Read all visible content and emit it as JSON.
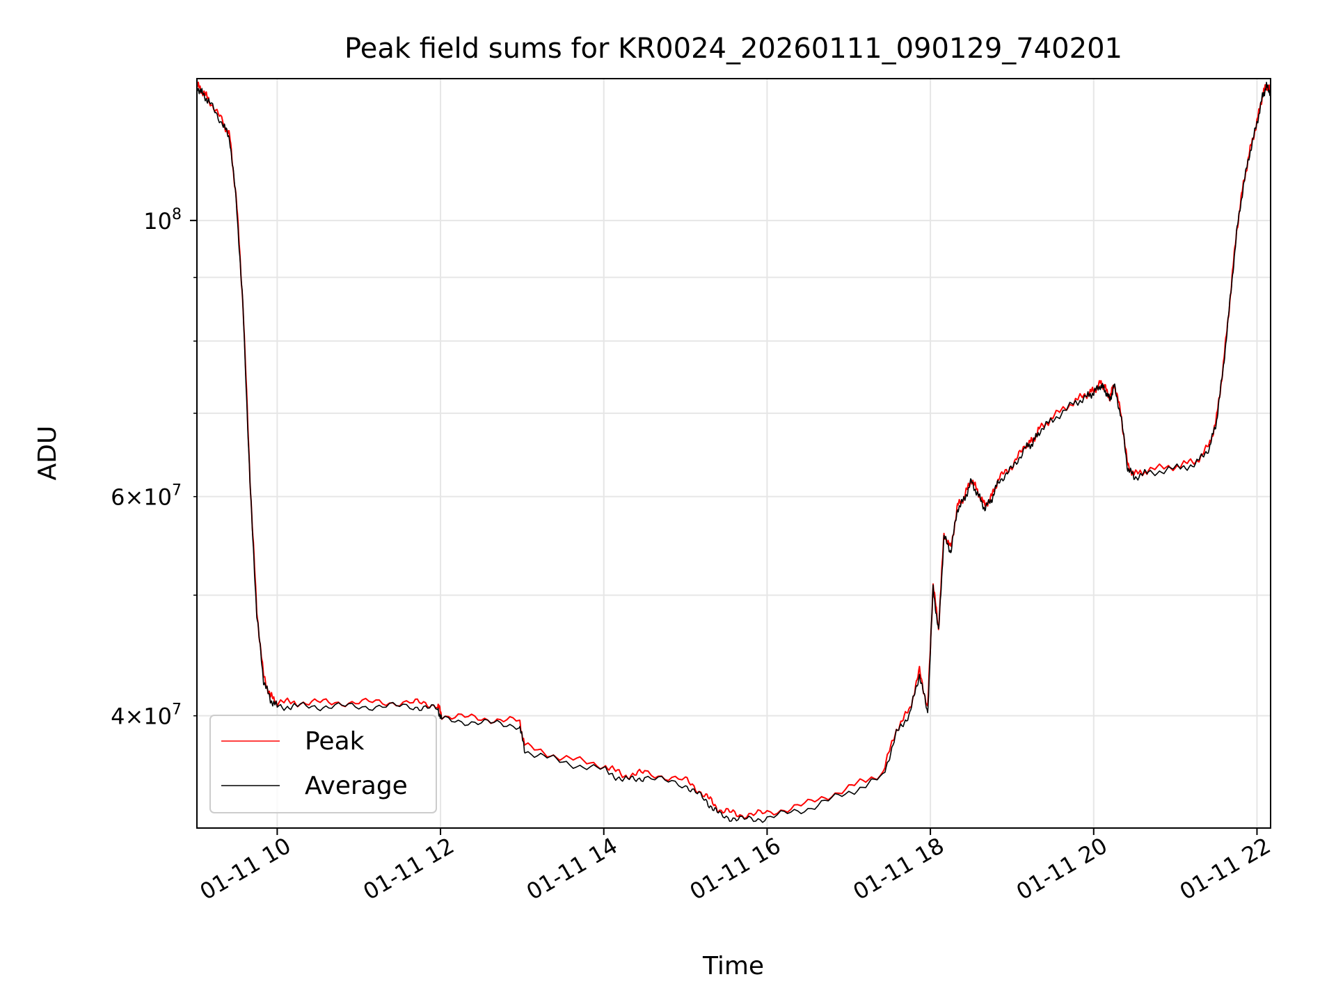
{
  "chart_data": {
    "type": "line",
    "title": "Peak field sums for KR0024_20260111_090129_740201",
    "xlabel": "Time",
    "ylabel": "ADU",
    "yscale": "log",
    "xlim": [
      "2026-01-11 09:01",
      "2026-01-11 22:10"
    ],
    "ylim": [
      32500000,
      130000000
    ],
    "x_ticks": [
      "01-11 10",
      "01-11 12",
      "01-11 14",
      "01-11 16",
      "01-11 18",
      "01-11 20",
      "01-11 22"
    ],
    "y_ticks_major": [
      {
        "value": 100000000,
        "base": "10",
        "exp": "8"
      }
    ],
    "y_ticks_labeled_minor": [
      {
        "value": 60000000,
        "mant": "6",
        "base": "10",
        "exp": "7"
      },
      {
        "value": 40000000,
        "mant": "4",
        "base": "10",
        "exp": "7"
      }
    ],
    "y_ticks_minor": [
      40000000,
      50000000,
      60000000,
      70000000,
      80000000,
      90000000
    ],
    "grid": true,
    "legend_position": "lower-left",
    "series": [
      {
        "name": "Peak",
        "color": "#ff0000",
        "x": [
          "2026-01-11 09:01",
          "2026-01-11 09:05",
          "2026-01-11 09:10",
          "2026-01-11 09:20",
          "2026-01-11 09:25",
          "2026-01-11 09:30",
          "2026-01-11 09:35",
          "2026-01-11 09:40",
          "2026-01-11 09:45",
          "2026-01-11 09:50",
          "2026-01-11 09:55",
          "2026-01-11 10:00",
          "2026-01-11 10:15",
          "2026-01-11 10:40",
          "2026-01-11 11:10",
          "2026-01-11 11:40",
          "2026-01-11 11:58",
          "2026-01-11 12:01",
          "2026-01-11 12:30",
          "2026-01-11 12:58",
          "2026-01-11 13:02",
          "2026-01-11 13:30",
          "2026-01-11 14:00",
          "2026-01-11 14:15",
          "2026-01-11 14:30",
          "2026-01-11 15:00",
          "2026-01-11 15:15",
          "2026-01-11 15:25",
          "2026-01-11 15:40",
          "2026-01-11 16:00",
          "2026-01-11 16:30",
          "2026-01-11 17:00",
          "2026-01-11 17:25",
          "2026-01-11 17:35",
          "2026-01-11 17:45",
          "2026-01-11 17:52",
          "2026-01-11 17:58",
          "2026-01-11 18:02",
          "2026-01-11 18:06",
          "2026-01-11 18:10",
          "2026-01-11 18:15",
          "2026-01-11 18:20",
          "2026-01-11 18:25",
          "2026-01-11 18:30",
          "2026-01-11 18:35",
          "2026-01-11 18:40",
          "2026-01-11 18:45",
          "2026-01-11 18:50",
          "2026-01-11 19:00",
          "2026-01-11 19:10",
          "2026-01-11 19:15",
          "2026-01-11 19:20",
          "2026-01-11 19:30",
          "2026-01-11 19:45",
          "2026-01-11 19:55",
          "2026-01-11 20:00",
          "2026-01-11 20:05",
          "2026-01-11 20:08",
          "2026-01-11 20:12",
          "2026-01-11 20:15",
          "2026-01-11 20:20",
          "2026-01-11 20:25",
          "2026-01-11 20:30",
          "2026-01-11 20:40",
          "2026-01-11 21:00",
          "2026-01-11 21:15",
          "2026-01-11 21:25",
          "2026-01-11 21:30",
          "2026-01-11 21:35",
          "2026-01-11 21:40",
          "2026-01-11 21:45",
          "2026-01-11 21:50",
          "2026-01-11 21:55",
          "2026-01-11 22:00",
          "2026-01-11 22:04",
          "2026-01-11 22:07",
          "2026-01-11 22:10"
        ],
        "values": [
          128500000,
          127000000,
          125000000,
          120000000,
          117000000,
          104000000,
          85000000,
          62000000,
          48500000,
          43000000,
          41500000,
          41000000,
          41000000,
          41000000,
          41000000,
          41000000,
          40800000,
          40000000,
          39800000,
          39600000,
          37800000,
          37000000,
          36500000,
          35800000,
          36000000,
          35500000,
          34500000,
          33600000,
          33300000,
          33400000,
          34000000,
          35000000,
          36000000,
          39000000,
          40500000,
          43500000,
          40500000,
          51000000,
          47000000,
          56000000,
          54500000,
          59000000,
          60000000,
          62000000,
          60500000,
          59000000,
          60000000,
          62000000,
          63500000,
          66000000,
          66500000,
          68000000,
          69500000,
          71500000,
          72500000,
          73000000,
          74000000,
          73500000,
          72000000,
          74000000,
          70000000,
          63500000,
          62500000,
          63000000,
          63500000,
          64000000,
          66000000,
          69000000,
          76000000,
          86000000,
          98000000,
          107000000,
          114000000,
          120000000,
          126000000,
          128500000,
          127000000
        ]
      },
      {
        "name": "Average",
        "color": "#000000",
        "x": [
          "2026-01-11 09:01",
          "2026-01-11 09:05",
          "2026-01-11 09:10",
          "2026-01-11 09:20",
          "2026-01-11 09:25",
          "2026-01-11 09:30",
          "2026-01-11 09:35",
          "2026-01-11 09:40",
          "2026-01-11 09:45",
          "2026-01-11 09:50",
          "2026-01-11 09:55",
          "2026-01-11 10:00",
          "2026-01-11 10:15",
          "2026-01-11 10:40",
          "2026-01-11 11:10",
          "2026-01-11 11:40",
          "2026-01-11 11:58",
          "2026-01-11 12:01",
          "2026-01-11 12:30",
          "2026-01-11 12:58",
          "2026-01-11 13:02",
          "2026-01-11 13:30",
          "2026-01-11 14:00",
          "2026-01-11 14:15",
          "2026-01-11 14:30",
          "2026-01-11 15:00",
          "2026-01-11 15:15",
          "2026-01-11 15:25",
          "2026-01-11 15:40",
          "2026-01-11 16:00",
          "2026-01-11 16:30",
          "2026-01-11 17:00",
          "2026-01-11 17:25",
          "2026-01-11 17:35",
          "2026-01-11 17:45",
          "2026-01-11 17:52",
          "2026-01-11 17:58",
          "2026-01-11 18:02",
          "2026-01-11 18:06",
          "2026-01-11 18:10",
          "2026-01-11 18:15",
          "2026-01-11 18:20",
          "2026-01-11 18:25",
          "2026-01-11 18:30",
          "2026-01-11 18:35",
          "2026-01-11 18:40",
          "2026-01-11 18:45",
          "2026-01-11 18:50",
          "2026-01-11 19:00",
          "2026-01-11 19:10",
          "2026-01-11 19:15",
          "2026-01-11 19:20",
          "2026-01-11 19:30",
          "2026-01-11 19:45",
          "2026-01-11 19:55",
          "2026-01-11 20:00",
          "2026-01-11 20:05",
          "2026-01-11 20:08",
          "2026-01-11 20:12",
          "2026-01-11 20:15",
          "2026-01-11 20:20",
          "2026-01-11 20:25",
          "2026-01-11 20:30",
          "2026-01-11 20:40",
          "2026-01-11 21:00",
          "2026-01-11 21:15",
          "2026-01-11 21:25",
          "2026-01-11 21:30",
          "2026-01-11 21:35",
          "2026-01-11 21:40",
          "2026-01-11 21:45",
          "2026-01-11 21:50",
          "2026-01-11 21:55",
          "2026-01-11 22:00",
          "2026-01-11 22:04",
          "2026-01-11 22:07",
          "2026-01-11 22:10"
        ],
        "values": [
          128000000,
          126500000,
          124500000,
          119500000,
          116500000,
          103500000,
          84500000,
          61500000,
          48200000,
          42700000,
          41200000,
          40700000,
          40700000,
          40700000,
          40700000,
          40700000,
          40500000,
          39700000,
          39500000,
          39300000,
          37500000,
          36700000,
          36200000,
          35500000,
          35700000,
          35200000,
          34200000,
          33300000,
          33000000,
          33100000,
          33700000,
          34700000,
          35700000,
          38700000,
          40200000,
          43200000,
          40200000,
          50700000,
          46700000,
          55700000,
          54200000,
          58700000,
          59700000,
          61700000,
          60200000,
          58700000,
          59700000,
          61700000,
          63200000,
          65700000,
          66200000,
          67700000,
          69200000,
          71200000,
          72200000,
          72700000,
          73700000,
          73200000,
          71700000,
          73700000,
          69700000,
          63200000,
          62200000,
          62700000,
          63200000,
          63700000,
          65700000,
          68700000,
          75700000,
          85700000,
          97700000,
          106700000,
          113700000,
          119700000,
          125700000,
          128200000,
          126700000
        ]
      }
    ]
  }
}
